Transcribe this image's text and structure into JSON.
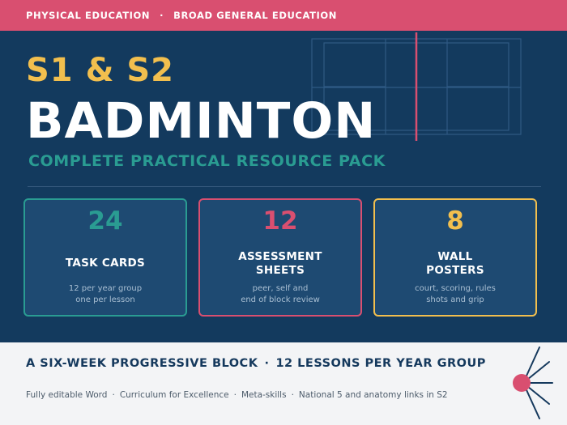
{
  "header": {
    "subject_area": "PHYSICAL EDUCATION",
    "separator": "·",
    "curriculum_level": "BROAD GENERAL EDUCATION"
  },
  "hero": {
    "year_groups": "S1 & S2",
    "title": "BADMINTON",
    "subtitle": "COMPLETE PRACTICAL RESOURCE PACK"
  },
  "cards": [
    {
      "number": "24",
      "label_lines": [
        "TASK CARDS"
      ],
      "desc_lines": [
        "12 per year group",
        "one per lesson"
      ],
      "accent": "#2a9c92"
    },
    {
      "number": "12",
      "label_lines": [
        "ASSESSMENT",
        "SHEETS"
      ],
      "desc_lines": [
        "peer, self and",
        "end of block review"
      ],
      "accent": "#d94f70"
    },
    {
      "number": "8",
      "label_lines": [
        "WALL",
        "POSTERS"
      ],
      "desc_lines": [
        "court, scoring, rules",
        "shots and grip"
      ],
      "accent": "#f2bf4e"
    }
  ],
  "footer": {
    "headline_parts": [
      "A SIX-WEEK PROGRESSIVE BLOCK",
      "12 LESSONS PER YEAR GROUP"
    ],
    "headline_separator": "·",
    "features": [
      "Fully editable Word",
      "Curriculum for Excellence",
      "Meta-skills",
      "National 5 and anatomy links in S2"
    ],
    "features_separator": "·"
  },
  "decor": {
    "court_icon": "badminton-court-icon",
    "shuttlecock_icon": "shuttlecock-icon"
  },
  "colors": {
    "banner": "#d94f70",
    "background": "#133a5e",
    "card_background": "#1e4a72",
    "teal": "#2a9c92",
    "pink": "#d94f70",
    "gold": "#f2bf4e",
    "footer_background": "#f3f4f6",
    "footer_text": "#15395d"
  }
}
